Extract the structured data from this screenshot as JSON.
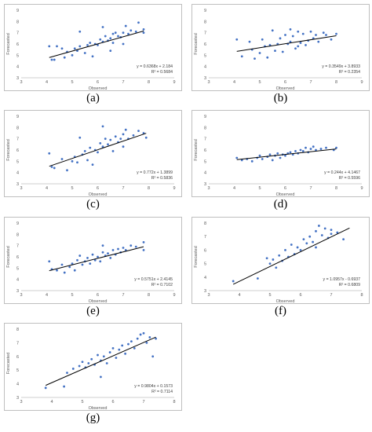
{
  "chart_data": [
    {
      "type": "scatter",
      "caption": "(a)",
      "xlabel": "Observed",
      "ylabel": "Forecasted",
      "xlim": [
        3,
        9
      ],
      "ylim": [
        3,
        9
      ],
      "grid": false,
      "xticks": [
        "3",
        "4",
        "5",
        "6",
        "7",
        "8",
        "9"
      ],
      "yticks": [
        "3",
        "4",
        "5",
        "6",
        "7",
        "8",
        "9"
      ],
      "equation": "y = 0.6368x + 2.184",
      "r2": "R² = 0.5684",
      "trend": {
        "slope": 0.6368,
        "intercept": 2.184,
        "x_range": [
          4.1,
          7.8
        ]
      },
      "points": [
        [
          4.1,
          5.8
        ],
        [
          4.2,
          4.6
        ],
        [
          4.3,
          4.6
        ],
        [
          4.4,
          5.8
        ],
        [
          4.6,
          5.6
        ],
        [
          4.7,
          4.8
        ],
        [
          4.8,
          5.3
        ],
        [
          5.0,
          5.0
        ],
        [
          5.1,
          5.6
        ],
        [
          5.2,
          5.4
        ],
        [
          5.3,
          5.8
        ],
        [
          5.3,
          7.1
        ],
        [
          5.5,
          5.2
        ],
        [
          5.6,
          5.9
        ],
        [
          5.7,
          6.1
        ],
        [
          5.8,
          4.9
        ],
        [
          5.9,
          6.0
        ],
        [
          6.0,
          5.9
        ],
        [
          6.1,
          6.4
        ],
        [
          6.2,
          6.2
        ],
        [
          6.2,
          7.5
        ],
        [
          6.3,
          6.7
        ],
        [
          6.4,
          6.3
        ],
        [
          6.5,
          6.5
        ],
        [
          6.5,
          5.4
        ],
        [
          6.6,
          6.9
        ],
        [
          6.6,
          6.1
        ],
        [
          6.7,
          7.0
        ],
        [
          6.8,
          6.7
        ],
        [
          6.9,
          6.6
        ],
        [
          7.0,
          7.0
        ],
        [
          7.0,
          6.0
        ],
        [
          7.1,
          7.6
        ],
        [
          7.2,
          6.9
        ],
        [
          7.3,
          7.2
        ],
        [
          7.5,
          7.1
        ],
        [
          7.6,
          7.9
        ],
        [
          7.8,
          7.0
        ],
        [
          7.8,
          7.3
        ]
      ]
    },
    {
      "type": "scatter",
      "caption": "(b)",
      "xlabel": "Observed",
      "ylabel": "Forecasted",
      "xlim": [
        3,
        9
      ],
      "ylim": [
        3,
        9
      ],
      "grid": false,
      "xticks": [
        "3",
        "4",
        "5",
        "6",
        "7",
        "8",
        "9"
      ],
      "yticks": [
        "3",
        "4",
        "5",
        "6",
        "7",
        "8",
        "9"
      ],
      "equation": "y = 0.3549x + 3.8933",
      "r2": "R² = 0.2354",
      "trend": {
        "slope": 0.3549,
        "intercept": 3.8933,
        "x_range": [
          4.1,
          8.0
        ]
      },
      "points": [
        [
          4.1,
          6.4
        ],
        [
          4.3,
          4.9
        ],
        [
          4.6,
          6.2
        ],
        [
          4.7,
          5.5
        ],
        [
          4.8,
          4.7
        ],
        [
          5.0,
          5.2
        ],
        [
          5.1,
          6.4
        ],
        [
          5.2,
          5.8
        ],
        [
          5.3,
          4.8
        ],
        [
          5.4,
          5.9
        ],
        [
          5.5,
          7.2
        ],
        [
          5.6,
          5.4
        ],
        [
          5.7,
          6.0
        ],
        [
          5.8,
          6.5
        ],
        [
          5.9,
          5.3
        ],
        [
          6.0,
          6.8
        ],
        [
          6.1,
          6.0
        ],
        [
          6.2,
          7.3
        ],
        [
          6.2,
          6.2
        ],
        [
          6.3,
          6.7
        ],
        [
          6.4,
          5.6
        ],
        [
          6.5,
          7.1
        ],
        [
          6.5,
          5.8
        ],
        [
          6.6,
          6.1
        ],
        [
          6.7,
          6.9
        ],
        [
          6.8,
          5.9
        ],
        [
          6.9,
          6.3
        ],
        [
          7.0,
          7.1
        ],
        [
          7.1,
          6.5
        ],
        [
          7.2,
          6.8
        ],
        [
          7.3,
          6.2
        ],
        [
          7.5,
          7.0
        ],
        [
          7.6,
          6.8
        ],
        [
          7.8,
          6.4
        ],
        [
          8.0,
          6.9
        ]
      ]
    },
    {
      "type": "scatter",
      "caption": "(c)",
      "xlabel": "Observed",
      "ylabel": "Forecasted",
      "xlim": [
        3,
        9
      ],
      "ylim": [
        3,
        9
      ],
      "grid": false,
      "xticks": [
        "3",
        "4",
        "5",
        "6",
        "7",
        "8",
        "9"
      ],
      "yticks": [
        "3",
        "4",
        "5",
        "6",
        "7",
        "8",
        "9"
      ],
      "equation": "y = 0.772x + 1.3899",
      "r2": "R² = 0.5836",
      "trend": {
        "slope": 0.772,
        "intercept": 1.3899,
        "x_range": [
          4.1,
          7.9
        ]
      },
      "points": [
        [
          4.1,
          5.7
        ],
        [
          4.2,
          4.5
        ],
        [
          4.3,
          4.4
        ],
        [
          4.6,
          5.2
        ],
        [
          4.8,
          4.2
        ],
        [
          5.0,
          5.0
        ],
        [
          5.1,
          5.4
        ],
        [
          5.2,
          4.9
        ],
        [
          5.3,
          7.1
        ],
        [
          5.4,
          5.6
        ],
        [
          5.5,
          5.9
        ],
        [
          5.6,
          5.1
        ],
        [
          5.7,
          6.2
        ],
        [
          5.8,
          4.7
        ],
        [
          5.9,
          6.0
        ],
        [
          6.0,
          5.8
        ],
        [
          6.1,
          6.6
        ],
        [
          6.2,
          6.3
        ],
        [
          6.2,
          8.1
        ],
        [
          6.3,
          7.0
        ],
        [
          6.4,
          6.5
        ],
        [
          6.5,
          6.9
        ],
        [
          6.6,
          5.9
        ],
        [
          6.7,
          7.2
        ],
        [
          6.8,
          6.7
        ],
        [
          6.9,
          7.0
        ],
        [
          7.0,
          7.4
        ],
        [
          7.0,
          6.3
        ],
        [
          7.1,
          7.8
        ],
        [
          7.2,
          7.0
        ],
        [
          7.4,
          7.3
        ],
        [
          7.6,
          7.7
        ],
        [
          7.8,
          7.5
        ],
        [
          7.9,
          7.1
        ]
      ]
    },
    {
      "type": "scatter",
      "caption": "(d)",
      "xlabel": "Observed",
      "ylabel": "Forecasted",
      "xlim": [
        3,
        9
      ],
      "ylim": [
        3,
        9
      ],
      "grid": false,
      "xticks": [
        "3",
        "4",
        "5",
        "6",
        "7",
        "8",
        "9"
      ],
      "yticks": [
        "3",
        "4",
        "5",
        "6",
        "7",
        "8",
        "9"
      ],
      "equation": "y = 0.244x + 4.1467",
      "r2": "R² = 0.5596",
      "trend": {
        "slope": 0.244,
        "intercept": 4.1467,
        "x_range": [
          4.1,
          8.0
        ]
      },
      "points": [
        [
          4.1,
          5.3
        ],
        [
          4.3,
          5.1
        ],
        [
          4.5,
          5.2
        ],
        [
          4.7,
          5.0
        ],
        [
          4.9,
          5.3
        ],
        [
          5.0,
          5.5
        ],
        [
          5.1,
          5.2
        ],
        [
          5.3,
          5.4
        ],
        [
          5.4,
          5.6
        ],
        [
          5.5,
          5.1
        ],
        [
          5.6,
          5.5
        ],
        [
          5.7,
          5.7
        ],
        [
          5.8,
          5.3
        ],
        [
          5.9,
          5.6
        ],
        [
          6.0,
          5.5
        ],
        [
          6.1,
          5.7
        ],
        [
          6.2,
          5.8
        ],
        [
          6.3,
          5.6
        ],
        [
          6.4,
          5.9
        ],
        [
          6.5,
          5.7
        ],
        [
          6.6,
          6.0
        ],
        [
          6.7,
          5.9
        ],
        [
          6.8,
          6.2
        ],
        [
          6.9,
          5.8
        ],
        [
          7.0,
          6.1
        ],
        [
          7.1,
          6.3
        ],
        [
          7.2,
          6.0
        ],
        [
          7.4,
          6.1
        ],
        [
          7.6,
          6.2
        ],
        [
          7.9,
          6.0
        ],
        [
          8.0,
          6.2
        ]
      ]
    },
    {
      "type": "scatter",
      "caption": "(e)",
      "xlabel": "Observed",
      "ylabel": "Forecasted",
      "xlim": [
        3,
        9
      ],
      "ylim": [
        3,
        9
      ],
      "grid": false,
      "xticks": [
        "3",
        "4",
        "5",
        "6",
        "7",
        "8",
        "9"
      ],
      "yticks": [
        "3",
        "4",
        "5",
        "6",
        "7",
        "8",
        "9"
      ],
      "equation": "y = 0.5751x + 2.4145",
      "r2": "R² = 0.7102",
      "trend": {
        "slope": 0.5751,
        "intercept": 2.4145,
        "x_range": [
          4.1,
          7.8
        ]
      },
      "points": [
        [
          4.1,
          5.6
        ],
        [
          4.2,
          4.9
        ],
        [
          4.4,
          4.8
        ],
        [
          4.6,
          5.3
        ],
        [
          4.7,
          4.6
        ],
        [
          4.9,
          5.1
        ],
        [
          5.0,
          5.4
        ],
        [
          5.1,
          4.8
        ],
        [
          5.2,
          5.7
        ],
        [
          5.3,
          6.1
        ],
        [
          5.4,
          5.3
        ],
        [
          5.5,
          5.6
        ],
        [
          5.6,
          5.9
        ],
        [
          5.7,
          5.4
        ],
        [
          5.8,
          6.2
        ],
        [
          5.9,
          5.7
        ],
        [
          6.0,
          6.0
        ],
        [
          6.1,
          5.6
        ],
        [
          6.2,
          6.4
        ],
        [
          6.2,
          7.0
        ],
        [
          6.3,
          6.1
        ],
        [
          6.4,
          6.3
        ],
        [
          6.5,
          5.9
        ],
        [
          6.6,
          6.6
        ],
        [
          6.7,
          6.2
        ],
        [
          6.8,
          6.7
        ],
        [
          6.9,
          6.4
        ],
        [
          7.0,
          6.8
        ],
        [
          7.1,
          6.6
        ],
        [
          7.3,
          7.0
        ],
        [
          7.5,
          6.9
        ],
        [
          7.8,
          7.3
        ],
        [
          7.8,
          6.6
        ]
      ]
    },
    {
      "type": "scatter",
      "caption": "(f)",
      "xlabel": "Observed",
      "ylabel": "Forecasted",
      "xlim": [
        3,
        8
      ],
      "ylim": [
        3,
        8
      ],
      "grid": false,
      "xticks": [
        "3",
        "4",
        "5",
        "6",
        "7",
        "8"
      ],
      "yticks": [
        "3",
        "4",
        "5",
        "6",
        "7",
        "8"
      ],
      "equation": "y = 1.0957x - 0.6937",
      "r2": "R² = 0.6809",
      "trend": {
        "slope": 1.0957,
        "intercept": -0.6937,
        "x_range": [
          3.8,
          7.6
        ]
      },
      "points": [
        [
          3.8,
          3.7
        ],
        [
          4.6,
          3.9
        ],
        [
          4.9,
          5.4
        ],
        [
          5.0,
          5.0
        ],
        [
          5.1,
          5.3
        ],
        [
          5.2,
          4.7
        ],
        [
          5.3,
          5.6
        ],
        [
          5.4,
          5.2
        ],
        [
          5.5,
          6.0
        ],
        [
          5.6,
          5.5
        ],
        [
          5.7,
          6.4
        ],
        [
          5.8,
          5.7
        ],
        [
          5.9,
          6.2
        ],
        [
          6.0,
          6.0
        ],
        [
          6.1,
          6.8
        ],
        [
          6.2,
          6.5
        ],
        [
          6.3,
          7.0
        ],
        [
          6.4,
          6.6
        ],
        [
          6.5,
          7.4
        ],
        [
          6.5,
          6.2
        ],
        [
          6.6,
          7.8
        ],
        [
          6.7,
          7.1
        ],
        [
          6.8,
          7.6
        ],
        [
          6.9,
          6.9
        ],
        [
          7.0,
          7.2
        ],
        [
          7.0,
          7.5
        ],
        [
          7.2,
          7.3
        ],
        [
          7.4,
          6.8
        ]
      ]
    },
    {
      "type": "scatter",
      "caption": "(g)",
      "xlabel": "Observed",
      "ylabel": "Forecasted",
      "xlim": [
        3,
        8
      ],
      "ylim": [
        3,
        8
      ],
      "grid": false,
      "xticks": [
        "3",
        "4",
        "5",
        "6",
        "7",
        "8"
      ],
      "yticks": [
        "3",
        "4",
        "5",
        "6",
        "7",
        "8"
      ],
      "equation": "y = 0.9804x + 0.1573",
      "r2": "R² = 0.7114",
      "trend": {
        "slope": 0.9804,
        "intercept": 0.1573,
        "x_range": [
          3.8,
          7.4
        ]
      },
      "points": [
        [
          3.8,
          3.7
        ],
        [
          4.4,
          3.8
        ],
        [
          4.5,
          4.8
        ],
        [
          4.7,
          5.1
        ],
        [
          4.9,
          5.3
        ],
        [
          5.0,
          5.6
        ],
        [
          5.1,
          5.2
        ],
        [
          5.2,
          5.5
        ],
        [
          5.3,
          5.8
        ],
        [
          5.4,
          5.4
        ],
        [
          5.5,
          6.1
        ],
        [
          5.6,
          4.5
        ],
        [
          5.6,
          5.7
        ],
        [
          5.7,
          6.0
        ],
        [
          5.8,
          5.5
        ],
        [
          5.9,
          6.3
        ],
        [
          6.0,
          6.6
        ],
        [
          6.1,
          5.9
        ],
        [
          6.2,
          6.5
        ],
        [
          6.3,
          6.8
        ],
        [
          6.4,
          6.2
        ],
        [
          6.5,
          6.9
        ],
        [
          6.6,
          7.1
        ],
        [
          6.7,
          6.6
        ],
        [
          6.8,
          7.3
        ],
        [
          6.9,
          7.6
        ],
        [
          7.0,
          7.7
        ],
        [
          7.1,
          7.0
        ],
        [
          7.2,
          7.4
        ],
        [
          7.3,
          6.0
        ],
        [
          7.4,
          7.3
        ]
      ]
    }
  ]
}
